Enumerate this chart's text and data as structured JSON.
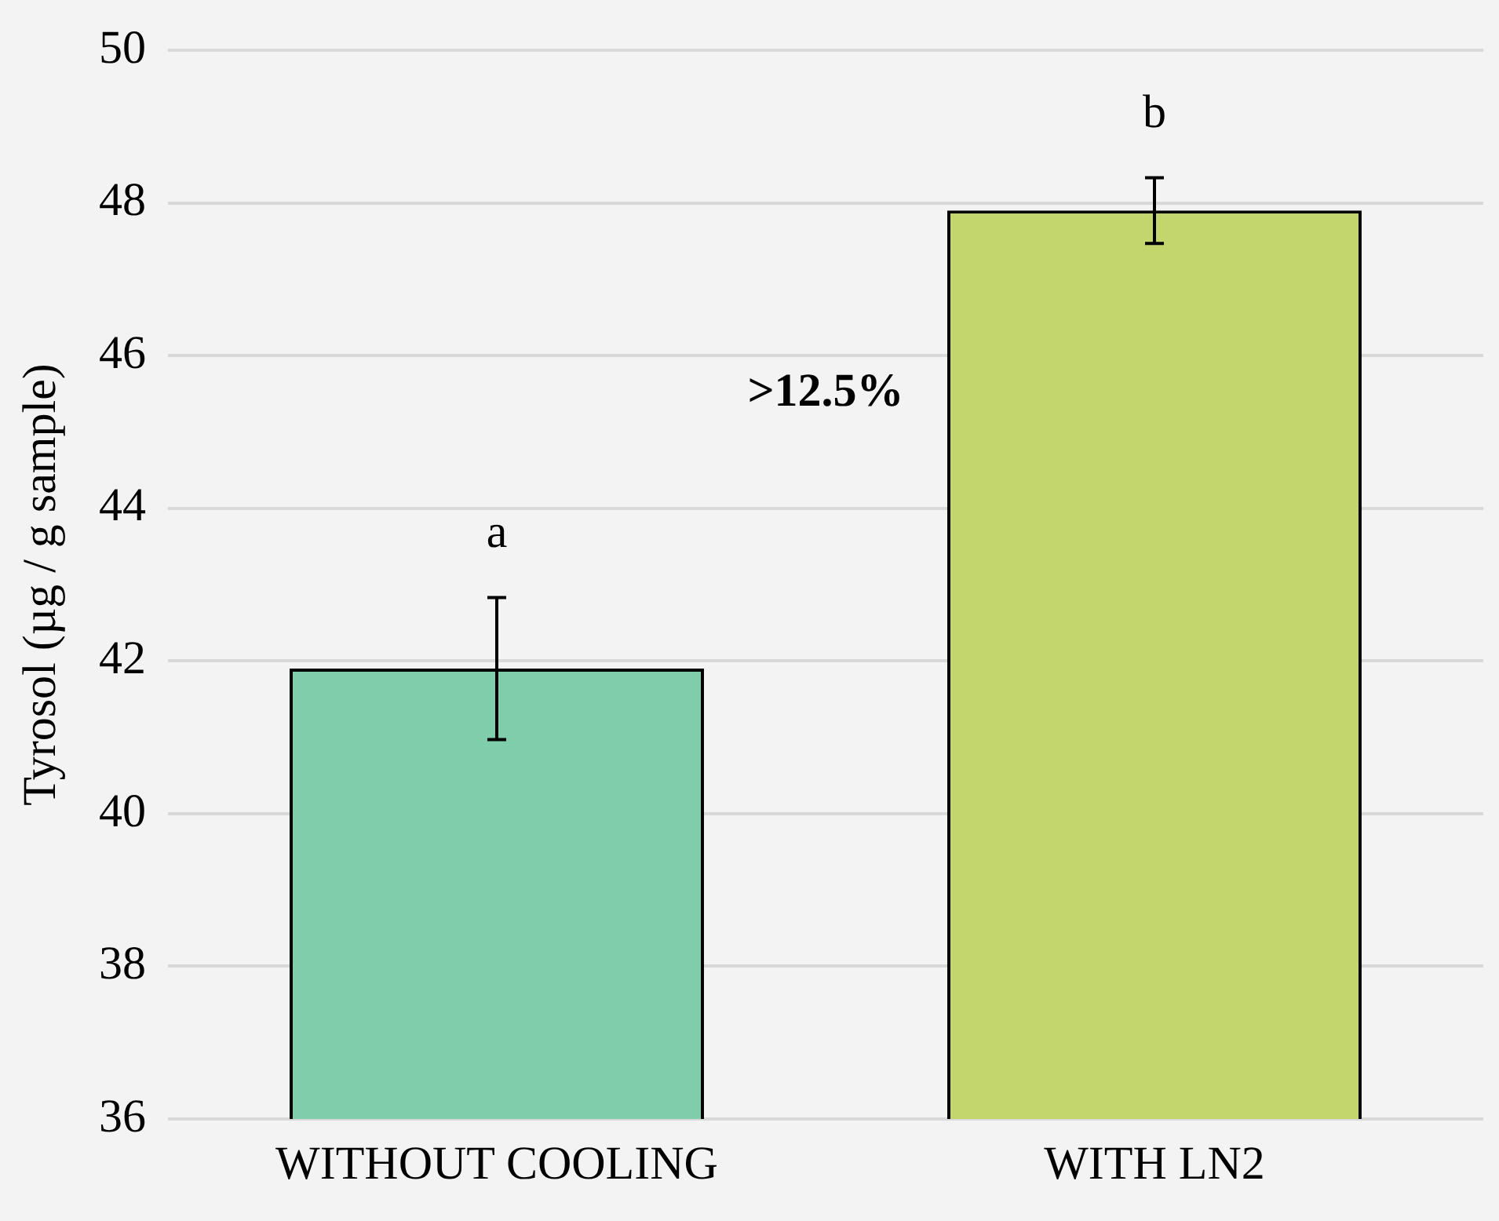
{
  "chart_data": {
    "type": "bar",
    "ylabel": "Tyrosol (µg / g sample)",
    "categories": [
      "WITHOUT COOLING",
      "WITH LN2"
    ],
    "values": [
      41.9,
      47.9
    ],
    "errors": [
      0.93,
      0.43
    ],
    "colors": [
      "#7fcdaa",
      "#c3d66e"
    ],
    "ylim": [
      36,
      50
    ],
    "yticks": [
      36,
      38,
      40,
      42,
      44,
      46,
      48,
      50
    ],
    "grid": "y",
    "legend": false,
    "annotations": [
      "a",
      "b",
      ">12.5%"
    ]
  }
}
